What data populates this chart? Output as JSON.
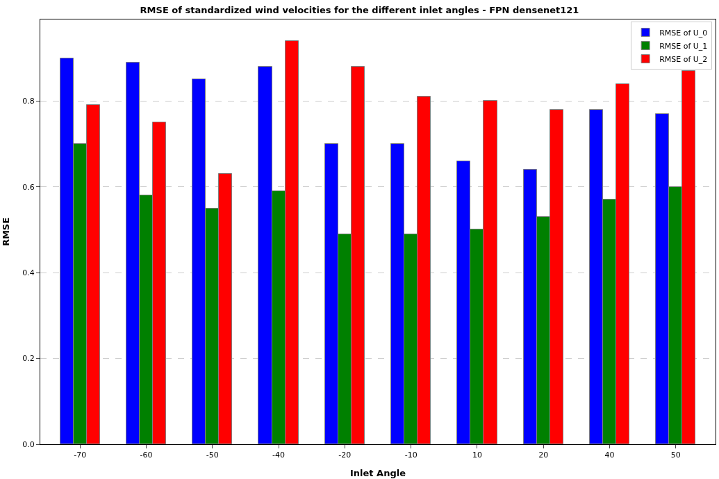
{
  "chart_data": {
    "type": "bar",
    "title": "RMSE of standardized wind velocities for the different inlet angles - FPN densenet121",
    "xlabel": "Inlet Angle",
    "ylabel": "RMSE",
    "categories": [
      "-70",
      "-60",
      "-50",
      "-40",
      "-20",
      "-10",
      "10",
      "20",
      "40",
      "50"
    ],
    "series": [
      {
        "name": "RMSE of U_0",
        "color": "#0000ff",
        "values": [
          0.9,
          0.89,
          0.85,
          0.88,
          0.7,
          0.7,
          0.66,
          0.64,
          0.78,
          0.77
        ]
      },
      {
        "name": "RMSE of U_1",
        "color": "#008000",
        "values": [
          0.7,
          0.58,
          0.55,
          0.59,
          0.49,
          0.49,
          0.5,
          0.53,
          0.57,
          0.6
        ]
      },
      {
        "name": "RMSE of U_2",
        "color": "#ff0000",
        "values": [
          0.79,
          0.75,
          0.63,
          0.94,
          0.88,
          0.81,
          0.8,
          0.78,
          0.84,
          0.87
        ]
      }
    ],
    "ylim": [
      0,
      0.99
    ],
    "yticks": [
      {
        "value": 0,
        "label": "0.0"
      },
      {
        "value": 0.2,
        "label": "0.2"
      },
      {
        "value": 0.4,
        "label": "0.4"
      },
      {
        "value": 0.6,
        "label": "0.6"
      },
      {
        "value": 0.8,
        "label": "0.8"
      }
    ],
    "grid": "y",
    "legend": "top right"
  }
}
